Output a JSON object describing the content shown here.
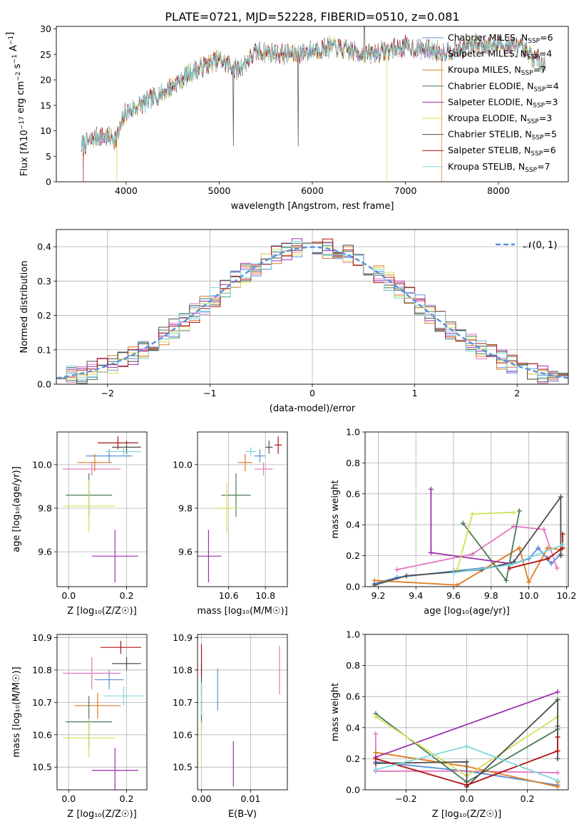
{
  "figure_title": "PLATE=0721, MJD=52228, FIBERID=0510, z=0.081",
  "ssp_colors": {
    "Chabrier MILES": "#5b8fd9",
    "Salpeter MILES": "#e377c2",
    "Kroupa MILES": "#e07b20",
    "Chabrier ELODIE": "#4a7a55",
    "Salpeter ELODIE": "#9b2fae",
    "Kroupa ELODIE": "#d4e157",
    "Chabrier STELIB": "#4d4d4d",
    "Salpeter STELIB": "#b01010",
    "Kroupa STELIB": "#80d8dc"
  },
  "chart_data": [
    {
      "id": "spectrum",
      "type": "line",
      "xlabel": "wavelength [Angstrom, rest frame]",
      "ylabel_main": "Flux [fλ10",
      "ylabel_exp1": "−17",
      "ylabel_mid": " erg cm",
      "ylabel_exp2": "−2",
      "ylabel_mid2": " s",
      "ylabel_exp3": "−1",
      "ylabel_end": " A",
      "ylabel_exp4": "−1",
      "ylabel_close": "]",
      "xlim": [
        3250,
        8750
      ],
      "ylim": [
        0,
        30.5
      ],
      "xticks": [
        "4000",
        "5000",
        "6000",
        "7000",
        "8000"
      ],
      "xtick_values": [
        4000,
        5000,
        6000,
        7000,
        8000
      ],
      "yticks": [
        "0",
        "5",
        "10",
        "15",
        "20",
        "25",
        "30"
      ],
      "ytick_values": [
        0,
        5,
        10,
        15,
        20,
        25,
        30
      ],
      "legend_position": "top-right",
      "legend": [
        {
          "name": "Chabrier MILES",
          "n": "6"
        },
        {
          "name": "Salpeter MILES",
          "n": "4"
        },
        {
          "name": "Kroupa MILES",
          "n": "7"
        },
        {
          "name": "Chabrier ELODIE",
          "n": "4"
        },
        {
          "name": "Salpeter ELODIE",
          "n": "3"
        },
        {
          "name": "Kroupa ELODIE",
          "n": "3"
        },
        {
          "name": "Chabrier STELIB",
          "n": "5"
        },
        {
          "name": "Salpeter STELIB",
          "n": "6"
        },
        {
          "name": "Kroupa STELIB",
          "n": "7"
        }
      ],
      "continuum_knots": [
        [
          3520,
          7.0
        ],
        [
          3700,
          9.0
        ],
        [
          3900,
          8.5
        ],
        [
          3990,
          13.5
        ],
        [
          4200,
          15.5
        ],
        [
          4400,
          17.5
        ],
        [
          4700,
          21.5
        ],
        [
          5000,
          24.0
        ],
        [
          5200,
          22.0
        ],
        [
          5400,
          25.5
        ],
        [
          5800,
          25.0
        ],
        [
          6200,
          26.5
        ],
        [
          6600,
          25.0
        ],
        [
          7000,
          26.5
        ],
        [
          7400,
          25.5
        ],
        [
          7800,
          27.0
        ],
        [
          8200,
          26.5
        ],
        [
          8500,
          23.0
        ]
      ],
      "dips": [
        {
          "series": "Salpeter STELIB",
          "x": 3540,
          "y": 0
        },
        {
          "series": "Kroupa ELODIE",
          "x": 3900,
          "y": 0
        },
        {
          "series": "Kroupa ELODIE",
          "x": 6800,
          "y": 0
        },
        {
          "series": "Kroupa MILES",
          "x": 7390,
          "y": 0
        }
      ]
    },
    {
      "id": "residuals",
      "type": "step",
      "xlabel": "(data-model)/error",
      "ylabel": "Normed distribution",
      "xlim": [
        -2.5,
        2.5
      ],
      "ylim": [
        0,
        0.45
      ],
      "xticks": [
        "−2",
        "−1",
        "0",
        "1",
        "2"
      ],
      "xtick_values": [
        -2,
        -1,
        0,
        1,
        2
      ],
      "yticks": [
        "0.0",
        "0.1",
        "0.2",
        "0.3",
        "0.4"
      ],
      "ytick_values": [
        0,
        0.1,
        0.2,
        0.3,
        0.4
      ],
      "bin_width": 0.1,
      "legend_label": "𝒩(0, 1)",
      "legend_position": "top-right",
      "grid": true
    },
    {
      "id": "age_vs_Z",
      "type": "errorbar",
      "xlabel": "Z [log₁₀(Z/Z☉)]",
      "ylabel": "age  [log₁₀(age/yr)]",
      "xlim": [
        -0.04,
        0.27
      ],
      "ylim": [
        9.44,
        10.15
      ],
      "xticks": [
        "0.0",
        "0.2"
      ],
      "xtick_values": [
        0,
        0.2
      ],
      "yticks": [
        "9.6",
        "9.8",
        "10.0"
      ],
      "ytick_values": [
        9.6,
        9.8,
        10.0
      ],
      "grid": true,
      "points": [
        {
          "series": "Chabrier MILES",
          "x": 0.14,
          "y": 10.04,
          "xerr": 0.08,
          "yerr": 0.03
        },
        {
          "series": "Salpeter MILES",
          "x": 0.08,
          "y": 9.98,
          "xerr": 0.1,
          "yerr": 0.03
        },
        {
          "series": "Kroupa MILES",
          "x": 0.09,
          "y": 10.01,
          "xerr": 0.06,
          "yerr": 0.04
        },
        {
          "series": "Chabrier ELODIE",
          "x": 0.07,
          "y": 9.86,
          "xerr": 0.08,
          "yerr": 0.1
        },
        {
          "series": "Salpeter ELODIE",
          "x": 0.16,
          "y": 9.58,
          "xerr": 0.08,
          "yerr": 0.12
        },
        {
          "series": "Kroupa ELODIE",
          "x": 0.07,
          "y": 9.81,
          "xerr": 0.09,
          "yerr": 0.12
        },
        {
          "series": "Chabrier STELIB",
          "x": 0.2,
          "y": 10.08,
          "xerr": 0.05,
          "yerr": 0.03
        },
        {
          "series": "Salpeter STELIB",
          "x": 0.17,
          "y": 10.1,
          "xerr": 0.07,
          "yerr": 0.03
        },
        {
          "series": "Kroupa STELIB",
          "x": 0.19,
          "y": 10.06,
          "xerr": 0.06,
          "yerr": 0.02
        }
      ]
    },
    {
      "id": "age_vs_mass",
      "type": "errorbar",
      "xlabel": "mass [log₁₀(M/M☉)]",
      "ylabel": "",
      "xlim": [
        10.43,
        10.92
      ],
      "ylim": [
        9.44,
        10.15
      ],
      "xticks": [
        "10.6",
        "10.8"
      ],
      "xtick_values": [
        10.6,
        10.8
      ],
      "yticks": [
        "9.6",
        "9.8",
        "10.0"
      ],
      "ytick_values": [
        9.6,
        9.8,
        10.0
      ],
      "grid": true,
      "points": [
        {
          "series": "Chabrier MILES",
          "x": 10.77,
          "y": 10.04,
          "xerr": 0.03,
          "yerr": 0.03
        },
        {
          "series": "Salpeter MILES",
          "x": 10.79,
          "y": 9.98,
          "xerr": 0.05,
          "yerr": 0.03
        },
        {
          "series": "Kroupa MILES",
          "x": 10.69,
          "y": 10.01,
          "xerr": 0.04,
          "yerr": 0.04
        },
        {
          "series": "Chabrier ELODIE",
          "x": 10.64,
          "y": 9.86,
          "xerr": 0.08,
          "yerr": 0.1
        },
        {
          "series": "Salpeter ELODIE",
          "x": 10.49,
          "y": 9.58,
          "xerr": 0.07,
          "yerr": 0.12
        },
        {
          "series": "Kroupa ELODIE",
          "x": 10.59,
          "y": 9.8,
          "xerr": 0.06,
          "yerr": 0.12
        },
        {
          "series": "Chabrier STELIB",
          "x": 10.82,
          "y": 10.08,
          "xerr": 0.02,
          "yerr": 0.03
        },
        {
          "series": "Salpeter STELIB",
          "x": 10.87,
          "y": 10.09,
          "xerr": 0.02,
          "yerr": 0.04
        },
        {
          "series": "Kroupa STELIB",
          "x": 10.72,
          "y": 10.06,
          "xerr": 0.03,
          "yerr": 0.02
        }
      ]
    },
    {
      "id": "massweight_vs_age",
      "type": "line",
      "xlabel": "age  [log₁₀(age/yr)]",
      "ylabel": "mass weight",
      "xlim": [
        9.13,
        10.21
      ],
      "ylim": [
        0,
        1
      ],
      "xticks": [
        "9.2",
        "9.4",
        "9.6",
        "9.8",
        "10.0",
        "10.2"
      ],
      "xtick_values": [
        9.2,
        9.4,
        9.6,
        9.8,
        10.0,
        10.2
      ],
      "yticks": [
        "0.0",
        "0.2",
        "0.4",
        "0.6",
        "0.8",
        "1.0"
      ],
      "ytick_values": [
        0,
        0.2,
        0.4,
        0.6,
        0.8,
        1.0
      ],
      "grid": true,
      "series": [
        {
          "name": "Chabrier MILES",
          "x": [
            9.18,
            9.3,
            9.6,
            9.9,
            10.0,
            10.05,
            10.12,
            10.17
          ],
          "y": [
            0.02,
            0.06,
            0.1,
            0.14,
            0.18,
            0.25,
            0.15,
            0.21
          ]
        },
        {
          "name": "Salpeter MILES",
          "x": [
            9.3,
            9.7,
            9.92,
            10.08,
            10.15
          ],
          "y": [
            0.11,
            0.21,
            0.39,
            0.37,
            0.12
          ]
        },
        {
          "name": "Kroupa MILES",
          "x": [
            9.18,
            9.62,
            9.95,
            10.0,
            10.1,
            10.17
          ],
          "y": [
            0.04,
            0.01,
            0.25,
            0.03,
            0.25,
            0.24
          ]
        },
        {
          "name": "Chabrier ELODIE",
          "x": [
            9.65,
            9.88,
            9.95
          ],
          "y": [
            0.41,
            0.04,
            0.49
          ]
        },
        {
          "name": "Salpeter ELODIE",
          "x": [
            9.48,
            9.48,
            9.9
          ],
          "y": [
            0.63,
            0.22,
            0.15
          ]
        },
        {
          "name": "Kroupa ELODIE",
          "x": [
            9.62,
            9.7,
            9.92
          ],
          "y": [
            0.11,
            0.47,
            0.48
          ]
        },
        {
          "name": "Chabrier STELIB",
          "x": [
            9.18,
            9.35,
            9.75,
            9.92,
            10.17,
            10.17
          ],
          "y": [
            0.01,
            0.07,
            0.11,
            0.16,
            0.58,
            0.2
          ]
        },
        {
          "name": "Salpeter STELIB",
          "x": [
            9.9,
            10.1,
            10.18,
            10.18
          ],
          "y": [
            0.12,
            0.18,
            0.25,
            0.34
          ]
        },
        {
          "name": "Kroupa STELIB",
          "x": [
            9.6,
            9.9,
            10.18
          ],
          "y": [
            0.09,
            0.14,
            0.27
          ]
        }
      ]
    },
    {
      "id": "mass_vs_Z",
      "type": "errorbar",
      "xlabel": "Z [log₁₀(Z/Z☉)]",
      "ylabel": "mass [log₁₀(M/M☉)]",
      "xlim": [
        -0.04,
        0.27
      ],
      "ylim": [
        10.43,
        10.91
      ],
      "xticks": [
        "0.0",
        "0.2"
      ],
      "xtick_values": [
        0,
        0.2
      ],
      "yticks": [
        "10.5",
        "10.6",
        "10.7",
        "10.8",
        "10.9"
      ],
      "ytick_values": [
        10.5,
        10.6,
        10.7,
        10.8,
        10.9
      ],
      "grid": true,
      "points": [
        {
          "series": "Chabrier MILES",
          "x": 0.14,
          "y": 10.77,
          "xerr": 0.05,
          "yerr": 0.03
        },
        {
          "series": "Salpeter MILES",
          "x": 0.08,
          "y": 10.79,
          "xerr": 0.1,
          "yerr": 0.05
        },
        {
          "series": "Kroupa MILES",
          "x": 0.1,
          "y": 10.69,
          "xerr": 0.08,
          "yerr": 0.04
        },
        {
          "series": "Chabrier ELODIE",
          "x": 0.07,
          "y": 10.64,
          "xerr": 0.08,
          "yerr": 0.08
        },
        {
          "series": "Salpeter ELODIE",
          "x": 0.16,
          "y": 10.49,
          "xerr": 0.08,
          "yerr": 0.07
        },
        {
          "series": "Kroupa ELODIE",
          "x": 0.07,
          "y": 10.59,
          "xerr": 0.09,
          "yerr": 0.06
        },
        {
          "series": "Chabrier STELIB",
          "x": 0.2,
          "y": 10.82,
          "xerr": 0.05,
          "yerr": 0.02
        },
        {
          "series": "Salpeter STELIB",
          "x": 0.18,
          "y": 10.87,
          "xerr": 0.07,
          "yerr": 0.02
        },
        {
          "series": "Kroupa STELIB",
          "x": 0.19,
          "y": 10.72,
          "xerr": 0.07,
          "yerr": 0.03
        }
      ]
    },
    {
      "id": "mass_vs_ebv",
      "type": "errorbar",
      "xlabel": "E(B-V)",
      "ylabel": "",
      "xlim": [
        -0.0008,
        0.0175
      ],
      "ylim": [
        10.43,
        10.91
      ],
      "xticks": [
        "0.00",
        "0.01"
      ],
      "xtick_values": [
        0,
        0.01
      ],
      "yticks": [
        "10.5",
        "10.6",
        "10.7",
        "10.8",
        "10.9"
      ],
      "ytick_values": [
        10.5,
        10.6,
        10.7,
        10.8,
        10.9
      ],
      "grid": true,
      "points": [
        {
          "series": "Chabrier MILES",
          "x": 0.0033,
          "y": 10.74,
          "xerr": 0,
          "yerr": 0.065
        },
        {
          "series": "Salpeter MILES",
          "x": 0.0159,
          "y": 10.8,
          "xerr": 0,
          "yerr": 0.075
        },
        {
          "series": "Kroupa MILES",
          "x": 0.0,
          "y": 10.7,
          "xerr": 0,
          "yerr": 0.05
        },
        {
          "series": "Chabrier ELODIE",
          "x": 0.0,
          "y": 10.66,
          "xerr": 0,
          "yerr": 0.05
        },
        {
          "series": "Salpeter ELODIE",
          "x": 0.0065,
          "y": 10.51,
          "xerr": 0,
          "yerr": 0.07
        },
        {
          "series": "Kroupa ELODIE",
          "x": 0.0,
          "y": 10.57,
          "xerr": 0,
          "yerr": 0.07
        },
        {
          "series": "Chabrier STELIB",
          "x": 0.0,
          "y": 10.77,
          "xerr": 0,
          "yerr": 0.05
        },
        {
          "series": "Salpeter STELIB",
          "x": 0.0,
          "y": 10.83,
          "xerr": 0,
          "yerr": 0.05
        },
        {
          "series": "Kroupa STELIB",
          "x": 0.0,
          "y": 10.71,
          "xerr": 0,
          "yerr": 0.05
        }
      ]
    },
    {
      "id": "massweight_vs_Z",
      "type": "line",
      "xlabel": "Z [log₁₀(Z/Z☉)]",
      "ylabel": "mass weight",
      "xlim": [
        -0.335,
        0.335
      ],
      "ylim": [
        0,
        1
      ],
      "xticks": [
        "−0.2",
        "0.0",
        "0.2"
      ],
      "xtick_values": [
        -0.2,
        0,
        0.2
      ],
      "yticks": [
        "0.0",
        "0.2",
        "0.4",
        "0.6",
        "0.8",
        "1.0"
      ],
      "ytick_values": [
        0,
        0.2,
        0.4,
        0.6,
        0.8,
        1.0
      ],
      "grid": true,
      "series": [
        {
          "name": "Chabrier MILES",
          "x": [
            -0.3,
            0.0,
            0.3
          ],
          "y": [
            0.18,
            0.12,
            0.03
          ]
        },
        {
          "name": "Salpeter MILES",
          "x": [
            -0.3,
            -0.3,
            0.0,
            0.3
          ],
          "y": [
            0.36,
            0.12,
            0.12,
            0.11
          ]
        },
        {
          "name": "Kroupa MILES",
          "x": [
            -0.3,
            0.0,
            0.3,
            0.3
          ],
          "y": [
            0.24,
            0.15,
            0.02,
            0.05
          ]
        },
        {
          "name": "Chabrier ELODIE",
          "x": [
            -0.3,
            0.0,
            0.3,
            0.3
          ],
          "y": [
            0.49,
            0.05,
            0.39,
            0.41
          ]
        },
        {
          "name": "Salpeter ELODIE",
          "x": [
            -0.3,
            0.3
          ],
          "y": [
            0.21,
            0.63
          ]
        },
        {
          "name": "Kroupa ELODIE",
          "x": [
            -0.3,
            0.0,
            0.3
          ],
          "y": [
            0.47,
            0.09,
            0.47
          ]
        },
        {
          "name": "Chabrier STELIB",
          "x": [
            -0.3,
            0.0,
            0.0,
            0.3,
            0.3
          ],
          "y": [
            0.17,
            0.18,
            0.02,
            0.58,
            0.2
          ]
        },
        {
          "name": "Salpeter STELIB",
          "x": [
            -0.3,
            0.0,
            0.3,
            0.3
          ],
          "y": [
            0.2,
            0.03,
            0.25,
            0.34
          ]
        },
        {
          "name": "Kroupa STELIB",
          "x": [
            -0.3,
            0.0,
            0.3
          ],
          "y": [
            0.13,
            0.28,
            0.06
          ]
        }
      ]
    }
  ]
}
